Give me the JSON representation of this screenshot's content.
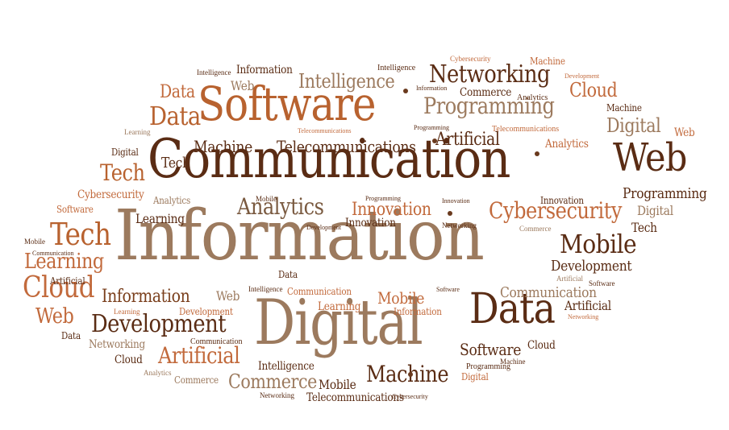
{
  "colors": {
    "dark_brown": "#5a2c14",
    "brown": "#7a3f1c",
    "tan": "#9c7a5e",
    "light_tan": "#b89a80",
    "orange": "#c26a3c",
    "rust": "#a85a2e"
  },
  "words": [
    {
      "text": "Information"
    },
    {
      "text": "Communication"
    },
    {
      "text": "Digital"
    },
    {
      "text": "Software"
    },
    {
      "text": "Web"
    },
    {
      "text": "Data"
    },
    {
      "text": "Networking"
    },
    {
      "text": "Programming"
    },
    {
      "text": "Intelligence"
    },
    {
      "text": "Cybersecurity"
    },
    {
      "text": "Analytics"
    },
    {
      "text": "Mobile"
    },
    {
      "text": "Development"
    },
    {
      "text": "Machine"
    },
    {
      "text": "Tech"
    },
    {
      "text": "Cloud"
    },
    {
      "text": "Learning"
    },
    {
      "text": "Artificial"
    },
    {
      "text": "Innovation"
    },
    {
      "text": "Telecommunications"
    },
    {
      "text": "Commerce"
    }
  ]
}
